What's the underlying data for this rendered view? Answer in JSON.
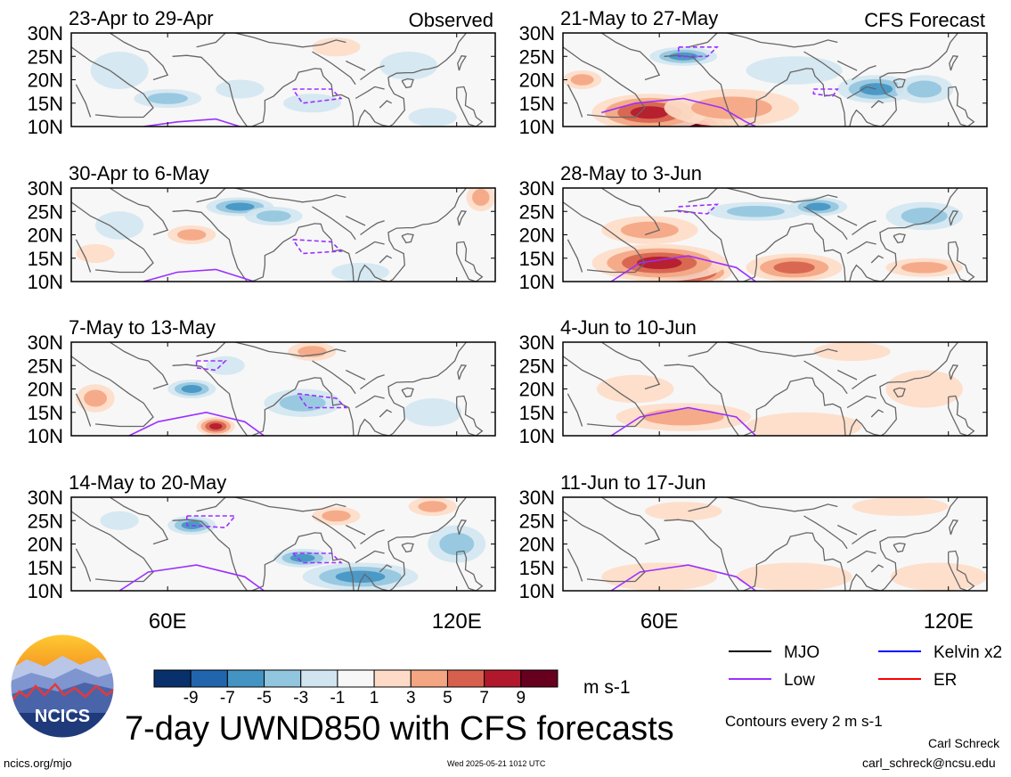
{
  "title": "7-day UWND850 with CFS forecasts",
  "units": "m s-1",
  "contour_note": "Contours every 2 m s-1",
  "author": "Carl Schreck",
  "email": "carl_schreck@ncsu.edu",
  "url": "ncics.org/mjo",
  "timestamp": "Wed 2025-05-21 1012 UTC",
  "logo_text": "NCICS",
  "column_labels": {
    "observed": "Observed",
    "forecast": "CFS Forecast"
  },
  "colors": {
    "low_contour": "#9b30ff",
    "mjo": "#000000",
    "kelvin": "#0000ff",
    "er": "#ff0000",
    "coast": "#666666"
  },
  "legend": [
    {
      "label": "MJO",
      "color": "#000000"
    },
    {
      "label": "Kelvin x2",
      "color": "#0000ff"
    },
    {
      "label": "Low",
      "color": "#9b30ff"
    },
    {
      "label": "ER",
      "color": "#ff0000"
    }
  ],
  "colorbar": {
    "ticks": [
      "-9",
      "-7",
      "-5",
      "-3",
      "-1",
      "1",
      "3",
      "5",
      "7",
      "9"
    ],
    "colors": [
      "#08306b",
      "#2166ac",
      "#4393c3",
      "#92c5de",
      "#d1e5f0",
      "#f7f7f7",
      "#fddbc7",
      "#f4a582",
      "#d6604d",
      "#b2182b",
      "#67001f"
    ]
  },
  "chart_data": {
    "type": "heatmap",
    "variable": "UWND850",
    "x_ticks": [
      "60E",
      "120E"
    ],
    "y_ticks": [
      "30N",
      "25N",
      "20N",
      "15N",
      "10N"
    ],
    "xlim": [
      40,
      128
    ],
    "ylim": [
      10,
      30
    ],
    "panels": [
      {
        "label": "23-Apr to 29-Apr",
        "column": "observed",
        "row": 0,
        "anomalies": [
          [
            60,
            16,
            -3,
            7,
            2
          ],
          [
            90,
            15,
            -2,
            6,
            2
          ],
          [
            110,
            23,
            -2,
            6,
            3
          ],
          [
            50,
            22,
            -1.5,
            6,
            4
          ],
          [
            95,
            27,
            1.5,
            5,
            2
          ],
          [
            75,
            18,
            -1.5,
            5,
            2
          ],
          [
            115,
            12,
            -1.5,
            5,
            2
          ]
        ],
        "low_contours": [
          {
            "type": "solid",
            "points": [
              [
                55,
                10
              ],
              [
                62,
                11
              ],
              [
                70,
                11.6
              ],
              [
                75,
                10
              ]
            ]
          },
          {
            "type": "dashed",
            "points": [
              [
                86,
                18
              ],
              [
                94,
                18
              ],
              [
                96,
                16
              ],
              [
                88,
                15
              ],
              [
                86,
                18
              ]
            ]
          }
        ]
      },
      {
        "label": "30-Apr to 6-May",
        "column": "observed",
        "row": 1,
        "anomalies": [
          [
            75,
            26,
            -5,
            7,
            2
          ],
          [
            65,
            20,
            3,
            5,
            2
          ],
          [
            82,
            24,
            -3,
            6,
            2
          ],
          [
            50,
            22,
            -1.5,
            5,
            3
          ],
          [
            125,
            28,
            3,
            3,
            3
          ],
          [
            100,
            12,
            -1.5,
            6,
            2
          ],
          [
            45,
            16,
            1.5,
            4,
            2
          ]
        ],
        "low_contours": [
          {
            "type": "solid",
            "points": [
              [
                55,
                10
              ],
              [
                62,
                12
              ],
              [
                70,
                12.6
              ],
              [
                78,
                10
              ]
            ]
          },
          {
            "type": "dashed",
            "points": [
              [
                86,
                19
              ],
              [
                94,
                18.5
              ],
              [
                96,
                16.5
              ],
              [
                88,
                16
              ],
              [
                86,
                19
              ]
            ]
          }
        ]
      },
      {
        "label": "7-May to 13-May",
        "column": "observed",
        "row": 2,
        "anomalies": [
          [
            65,
            20,
            -5,
            5,
            2
          ],
          [
            70,
            12,
            7,
            4,
            2
          ],
          [
            88,
            17,
            -3,
            8,
            3
          ],
          [
            72,
            25,
            -1.5,
            4,
            2
          ],
          [
            90,
            28,
            3,
            5,
            2
          ],
          [
            115,
            15,
            -1.5,
            6,
            3
          ],
          [
            45,
            18,
            3,
            4,
            3
          ]
        ],
        "low_contours": [
          {
            "type": "solid",
            "points": [
              [
                52,
                10
              ],
              [
                58,
                13
              ],
              [
                68,
                15
              ],
              [
                76,
                13
              ],
              [
                80,
                10
              ]
            ]
          },
          {
            "type": "dashed",
            "points": [
              [
                66,
                26
              ],
              [
                72,
                26
              ],
              [
                70,
                24
              ],
              [
                66,
                24.5
              ],
              [
                66,
                26
              ]
            ]
          },
          {
            "type": "dashed",
            "points": [
              [
                87,
                19
              ],
              [
                95,
                18
              ],
              [
                97,
                16
              ],
              [
                89,
                16
              ],
              [
                87,
                19
              ]
            ]
          }
        ]
      },
      {
        "label": "14-May to 20-May",
        "column": "observed",
        "row": 3,
        "anomalies": [
          [
            100,
            13,
            -6,
            12,
            3
          ],
          [
            88,
            17,
            -5,
            6,
            2
          ],
          [
            65,
            24,
            -5,
            5,
            2
          ],
          [
            120,
            20,
            -3,
            6,
            4
          ],
          [
            115,
            28,
            3,
            5,
            2
          ],
          [
            95,
            26,
            3,
            5,
            2
          ],
          [
            50,
            25,
            -1.5,
            4,
            2
          ]
        ],
        "low_contours": [
          {
            "type": "solid",
            "points": [
              [
                50,
                10
              ],
              [
                56,
                14
              ],
              [
                66,
                15.5
              ],
              [
                76,
                13
              ],
              [
                80,
                10
              ]
            ]
          },
          {
            "type": "dashed",
            "points": [
              [
                64,
                26
              ],
              [
                74,
                26
              ],
              [
                72,
                23.5
              ],
              [
                64,
                24
              ],
              [
                64,
                26
              ]
            ]
          },
          {
            "type": "dashed",
            "points": [
              [
                86,
                18
              ],
              [
                94,
                18
              ],
              [
                96,
                16
              ],
              [
                88,
                16
              ],
              [
                86,
                18
              ]
            ]
          }
        ]
      },
      {
        "label": "21-May to 27-May",
        "column": "forecast",
        "row": 0,
        "anomalies": [
          [
            64,
            10,
            12,
            12,
            4
          ],
          [
            58,
            13,
            7,
            12,
            4
          ],
          [
            75,
            14,
            4,
            14,
            4
          ],
          [
            65,
            25,
            -6,
            7,
            2
          ],
          [
            105,
            18,
            -5,
            8,
            3
          ],
          [
            115,
            18,
            -3,
            6,
            3
          ],
          [
            88,
            22,
            -1.5,
            10,
            3
          ],
          [
            44,
            20,
            3,
            4,
            2
          ]
        ],
        "low_contours": [
          {
            "type": "solid",
            "points": [
              [
                48,
                13
              ],
              [
                55,
                15
              ],
              [
                65,
                16
              ],
              [
                73,
                14
              ],
              [
                78,
                11
              ],
              [
                80,
                10
              ]
            ]
          },
          {
            "type": "dashed",
            "points": [
              [
                64,
                27
              ],
              [
                72,
                27
              ],
              [
                70,
                25
              ],
              [
                64,
                25
              ],
              [
                64,
                27
              ]
            ]
          },
          {
            "type": "dashed",
            "points": [
              [
                92,
                18
              ],
              [
                97,
                18
              ],
              [
                96,
                16.5
              ],
              [
                92,
                17
              ],
              [
                92,
                18
              ]
            ]
          }
        ]
      },
      {
        "label": "28-May to 3-Jun",
        "column": "forecast",
        "row": 1,
        "anomalies": [
          [
            65,
            12,
            12,
            10,
            3
          ],
          [
            60,
            14,
            7,
            14,
            4
          ],
          [
            88,
            13,
            5,
            10,
            3
          ],
          [
            58,
            21,
            3,
            10,
            3
          ],
          [
            80,
            25,
            -3,
            10,
            2
          ],
          [
            93,
            26,
            -5,
            6,
            2
          ],
          [
            115,
            24,
            -3,
            8,
            3
          ],
          [
            115,
            13,
            3,
            8,
            2
          ]
        ],
        "low_contours": [
          {
            "type": "solid",
            "points": [
              [
                50,
                10
              ],
              [
                56,
                14
              ],
              [
                66,
                15.5
              ],
              [
                76,
                13
              ],
              [
                80,
                10
              ]
            ]
          },
          {
            "type": "dashed",
            "points": [
              [
                64,
                26
              ],
              [
                72,
                26.5
              ],
              [
                70,
                24.5
              ],
              [
                64,
                25
              ],
              [
                64,
                26
              ]
            ]
          }
        ]
      },
      {
        "label": "4-Jun to 10-Jun",
        "column": "forecast",
        "row": 2,
        "anomalies": [
          [
            65,
            14,
            3,
            14,
            3
          ],
          [
            90,
            12,
            1.5,
            12,
            3
          ],
          [
            55,
            20,
            1.5,
            8,
            3
          ],
          [
            115,
            20,
            1.5,
            8,
            4
          ],
          [
            100,
            28,
            1.5,
            8,
            2
          ]
        ],
        "low_contours": [
          {
            "type": "solid",
            "points": [
              [
                50,
                10
              ],
              [
                56,
                14
              ],
              [
                66,
                16
              ],
              [
                76,
                14
              ],
              [
                80,
                10
              ]
            ]
          }
        ]
      },
      {
        "label": "11-Jun to 17-Jun",
        "column": "forecast",
        "row": 3,
        "anomalies": [
          [
            60,
            13,
            1.5,
            12,
            3
          ],
          [
            88,
            13,
            1.5,
            12,
            3
          ],
          [
            118,
            13,
            1.5,
            10,
            3
          ],
          [
            110,
            28,
            1.5,
            10,
            2
          ],
          [
            65,
            27,
            1.5,
            8,
            2
          ]
        ],
        "low_contours": [
          {
            "type": "solid",
            "points": [
              [
                50,
                10
              ],
              [
                56,
                14
              ],
              [
                66,
                15.5
              ],
              [
                76,
                13
              ],
              [
                80,
                10
              ]
            ]
          }
        ]
      }
    ]
  }
}
